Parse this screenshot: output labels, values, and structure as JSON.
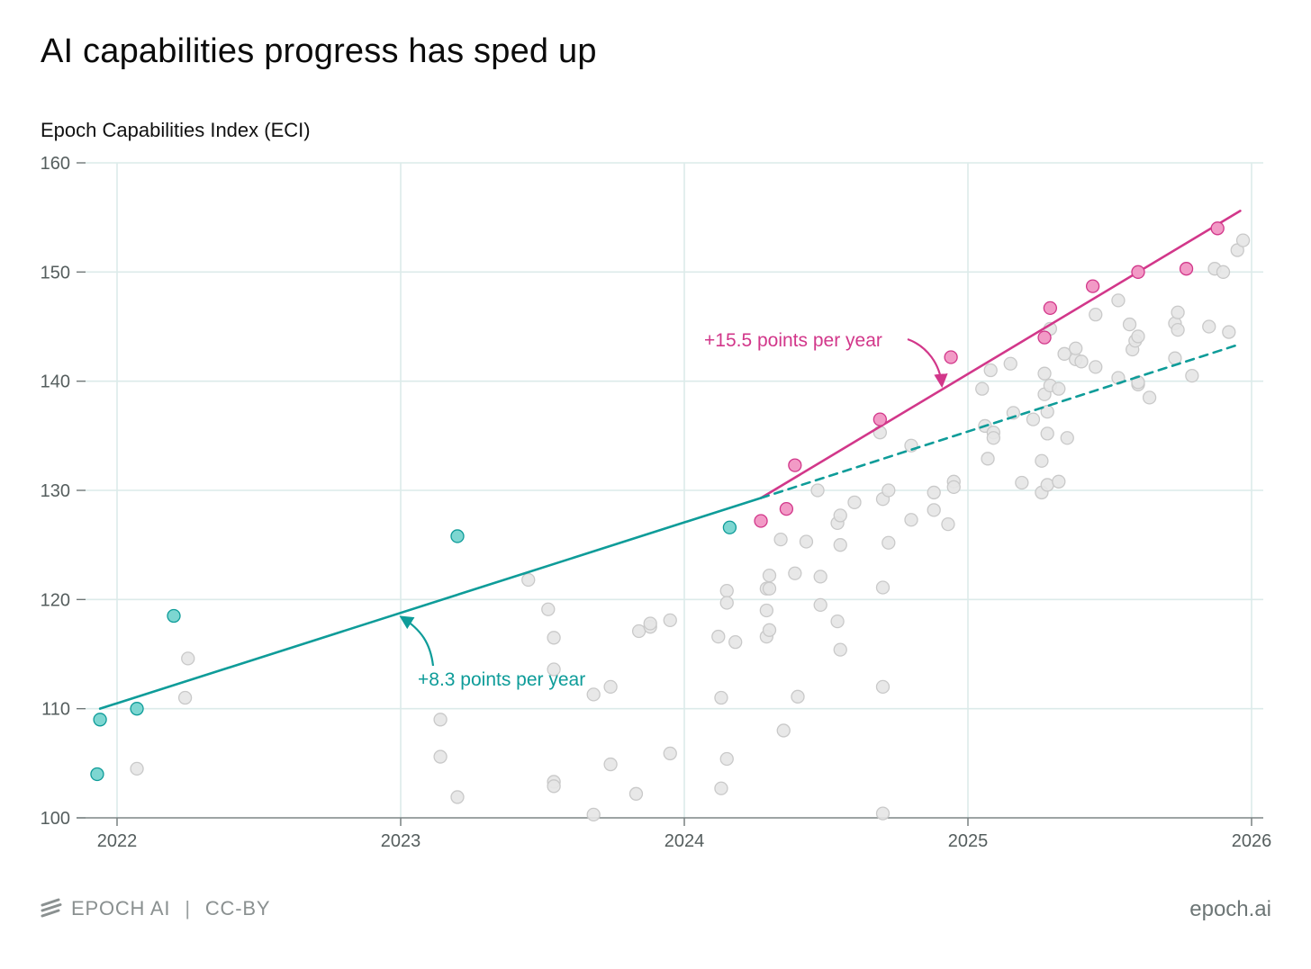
{
  "footer": {
    "brand": "EPOCH AI",
    "separator": "|",
    "license": "CC-BY",
    "url": "epoch.ai",
    "logo_icon": "epoch-stripes-logo"
  },
  "colors": {
    "teal": "#0e9c99",
    "teal_fill": "#7dd6d1",
    "pink": "#d2378a",
    "pink_fill": "#f29ac6",
    "gray_fill": "#e6e6e6",
    "gray_stroke": "#c9c9c9",
    "grid": "#dcebea"
  },
  "chart_data": {
    "type": "scatter",
    "title": "AI capabilities progress has sped up",
    "ylabel": "Epoch Capabilities Index (ECI)",
    "xlim": [
      2021.95,
      2026.05
    ],
    "ylim": [
      100,
      160
    ],
    "x_ticks": [
      2022,
      2023,
      2024,
      2025,
      2026
    ],
    "x_tick_labels": [
      "2022",
      "2023",
      "2024",
      "2025",
      "2026"
    ],
    "y_ticks": [
      100,
      110,
      120,
      130,
      140,
      150,
      160
    ],
    "y_tick_labels": [
      "100",
      "110",
      "120",
      "130",
      "140",
      "150",
      "160"
    ],
    "grid": true,
    "series": [
      {
        "role": "frontier-early",
        "color": "teal",
        "points": [
          [
            2021.93,
            104.0
          ],
          [
            2021.94,
            109.0
          ],
          [
            2022.07,
            110.0
          ],
          [
            2022.2,
            118.5
          ],
          [
            2023.2,
            125.8
          ],
          [
            2024.16,
            126.6
          ]
        ]
      },
      {
        "role": "frontier-recent",
        "color": "pink",
        "points": [
          [
            2024.27,
            127.2
          ],
          [
            2024.36,
            128.3
          ],
          [
            2024.39,
            132.3
          ],
          [
            2024.69,
            136.5
          ],
          [
            2024.94,
            142.2
          ],
          [
            2025.27,
            144.0
          ],
          [
            2025.29,
            146.7
          ],
          [
            2025.44,
            148.7
          ],
          [
            2025.6,
            150.0
          ],
          [
            2025.77,
            150.3
          ],
          [
            2025.88,
            154.0
          ]
        ]
      },
      {
        "role": "other-models",
        "color": "gray",
        "points": [
          [
            2022.07,
            104.5
          ],
          [
            2022.24,
            111.0
          ],
          [
            2022.25,
            114.6
          ],
          [
            2023.14,
            109.0
          ],
          [
            2023.14,
            105.6
          ],
          [
            2023.2,
            101.9
          ],
          [
            2023.45,
            121.8
          ],
          [
            2023.52,
            119.1
          ],
          [
            2023.54,
            116.5
          ],
          [
            2023.54,
            113.6
          ],
          [
            2023.54,
            103.3
          ],
          [
            2023.54,
            102.9
          ],
          [
            2023.68,
            111.3
          ],
          [
            2023.68,
            100.3
          ],
          [
            2023.74,
            112.0
          ],
          [
            2023.74,
            104.9
          ],
          [
            2023.83,
            102.2
          ],
          [
            2023.84,
            117.1
          ],
          [
            2023.88,
            117.5
          ],
          [
            2023.88,
            117.8
          ],
          [
            2023.95,
            118.1
          ],
          [
            2023.95,
            105.9
          ],
          [
            2024.12,
            116.6
          ],
          [
            2024.13,
            111.0
          ],
          [
            2024.13,
            102.7
          ],
          [
            2024.15,
            120.8
          ],
          [
            2024.15,
            119.7
          ],
          [
            2024.15,
            105.4
          ],
          [
            2024.18,
            116.1
          ],
          [
            2024.29,
            121.0
          ],
          [
            2024.29,
            119.0
          ],
          [
            2024.29,
            116.6
          ],
          [
            2024.3,
            122.2
          ],
          [
            2024.3,
            121.0
          ],
          [
            2024.3,
            117.2
          ],
          [
            2024.34,
            125.5
          ],
          [
            2024.35,
            108.0
          ],
          [
            2024.39,
            122.4
          ],
          [
            2024.4,
            111.1
          ],
          [
            2024.43,
            125.3
          ],
          [
            2024.47,
            130.0
          ],
          [
            2024.48,
            122.1
          ],
          [
            2024.48,
            119.5
          ],
          [
            2024.54,
            127.0
          ],
          [
            2024.54,
            118.0
          ],
          [
            2024.55,
            127.7
          ],
          [
            2024.55,
            125.0
          ],
          [
            2024.55,
            115.4
          ],
          [
            2024.6,
            128.9
          ],
          [
            2024.69,
            135.3
          ],
          [
            2024.7,
            129.2
          ],
          [
            2024.7,
            121.1
          ],
          [
            2024.7,
            112.0
          ],
          [
            2024.7,
            100.4
          ],
          [
            2024.72,
            130.0
          ],
          [
            2024.72,
            125.2
          ],
          [
            2024.8,
            134.1
          ],
          [
            2024.8,
            127.3
          ],
          [
            2024.88,
            129.8
          ],
          [
            2024.88,
            128.2
          ],
          [
            2024.93,
            126.9
          ],
          [
            2024.95,
            130.8
          ],
          [
            2024.95,
            130.3
          ],
          [
            2025.05,
            139.3
          ],
          [
            2025.06,
            135.9
          ],
          [
            2025.07,
            132.9
          ],
          [
            2025.08,
            141.0
          ],
          [
            2025.09,
            135.3
          ],
          [
            2025.09,
            134.8
          ],
          [
            2025.15,
            141.6
          ],
          [
            2025.16,
            137.1
          ],
          [
            2025.19,
            130.7
          ],
          [
            2025.23,
            136.5
          ],
          [
            2025.26,
            132.7
          ],
          [
            2025.26,
            129.8
          ],
          [
            2025.27,
            140.7
          ],
          [
            2025.27,
            138.8
          ],
          [
            2025.28,
            137.2
          ],
          [
            2025.28,
            135.2
          ],
          [
            2025.28,
            130.5
          ],
          [
            2025.29,
            139.6
          ],
          [
            2025.29,
            144.8
          ],
          [
            2025.32,
            139.3
          ],
          [
            2025.32,
            130.8
          ],
          [
            2025.34,
            142.5
          ],
          [
            2025.35,
            134.8
          ],
          [
            2025.38,
            142.0
          ],
          [
            2025.38,
            143.0
          ],
          [
            2025.4,
            141.8
          ],
          [
            2025.45,
            146.1
          ],
          [
            2025.45,
            141.3
          ],
          [
            2025.53,
            147.4
          ],
          [
            2025.53,
            140.3
          ],
          [
            2025.57,
            145.2
          ],
          [
            2025.58,
            142.9
          ],
          [
            2025.59,
            143.7
          ],
          [
            2025.6,
            144.1
          ],
          [
            2025.6,
            139.7
          ],
          [
            2025.6,
            139.9
          ],
          [
            2025.64,
            138.5
          ],
          [
            2025.73,
            145.3
          ],
          [
            2025.74,
            144.7
          ],
          [
            2025.74,
            146.3
          ],
          [
            2025.73,
            142.1
          ],
          [
            2025.79,
            140.5
          ],
          [
            2025.85,
            145.0
          ],
          [
            2025.87,
            150.3
          ],
          [
            2025.9,
            150.0
          ],
          [
            2025.92,
            144.5
          ],
          [
            2025.95,
            152.0
          ],
          [
            2025.97,
            152.9
          ]
        ]
      }
    ],
    "trends": [
      {
        "role": "early-trend",
        "color": "teal",
        "style": "solid",
        "start": [
          2021.94,
          110.0
        ],
        "end": [
          2024.27,
          129.3
        ],
        "label": "+8.3 points per year"
      },
      {
        "role": "recent-trend",
        "color": "pink",
        "style": "solid",
        "start": [
          2024.27,
          129.3
        ],
        "end": [
          2025.96,
          155.6
        ],
        "label": "+15.5 points per year"
      },
      {
        "role": "early-trend-extension",
        "color": "teal",
        "style": "dashed",
        "start": [
          2024.27,
          129.3
        ],
        "end": [
          2025.96,
          143.4
        ]
      }
    ]
  }
}
